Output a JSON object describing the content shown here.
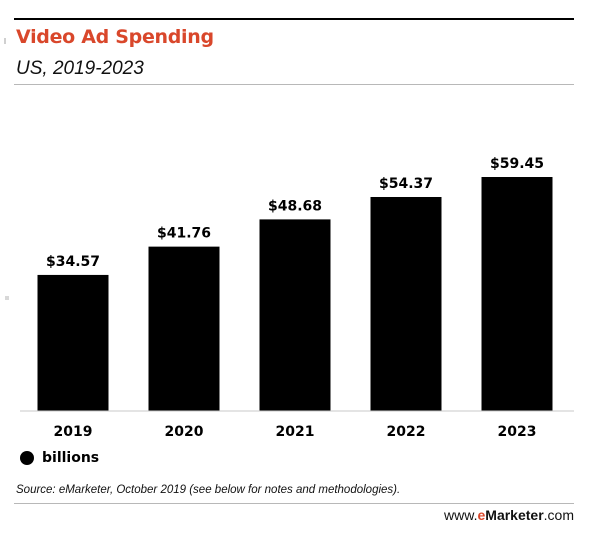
{
  "header": {
    "title": "Video Ad Spending",
    "subtitle": "US, 2019-2023"
  },
  "legend": {
    "label": "billions"
  },
  "footer": {
    "source": "Source: eMarketer, October 2019 (see below for notes and methodologies).",
    "brand_prefix": "www.",
    "brand_e": "e",
    "brand_name": "Marketer",
    "brand_suffix": ".com"
  },
  "colors": {
    "bar": "#000000",
    "title": "#d9472b",
    "brand_accent": "#d9472b"
  },
  "chart_data": {
    "type": "bar",
    "title": "Video Ad Spending",
    "subtitle": "US, 2019-2023",
    "categories": [
      "2019",
      "2020",
      "2021",
      "2022",
      "2023"
    ],
    "values": [
      34.57,
      41.76,
      48.68,
      54.37,
      59.45
    ],
    "value_labels": [
      "$34.57",
      "$41.76",
      "$48.68",
      "$54.37",
      "$59.45"
    ],
    "series": [
      {
        "name": "billions",
        "values": [
          34.57,
          41.76,
          48.68,
          54.37,
          59.45
        ]
      }
    ],
    "xlabel": "",
    "ylabel": "",
    "ylim": [
      0,
      59.45
    ],
    "grid": false,
    "legend_position": "bottom-left"
  }
}
